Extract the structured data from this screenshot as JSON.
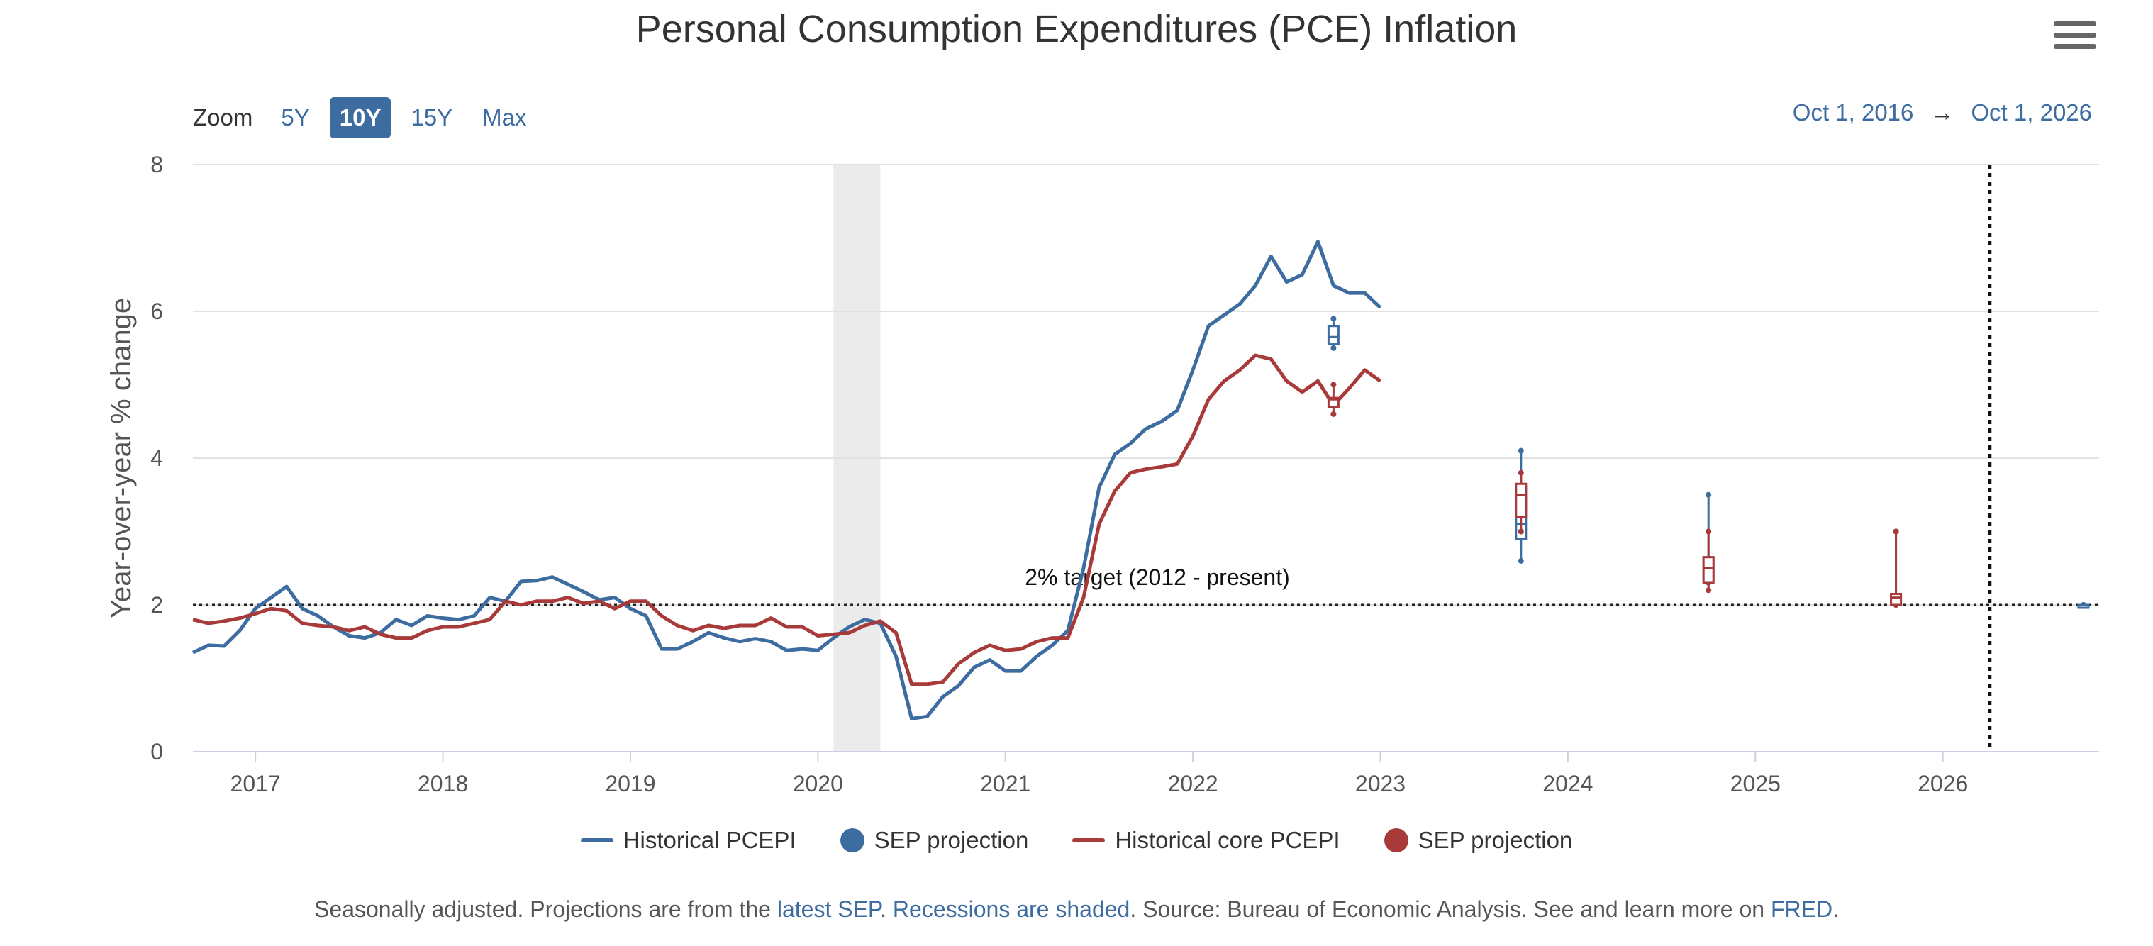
{
  "title": "Personal Consumption Expenditures (PCE) Inflation",
  "menu_icon": "hamburger-menu-icon",
  "zoom": {
    "label": "Zoom",
    "buttons": [
      "5Y",
      "10Y",
      "15Y",
      "Max"
    ],
    "active": "10Y"
  },
  "range": {
    "from": "Oct 1, 2016",
    "arrow": "→",
    "to": "Oct 1, 2026"
  },
  "colors": {
    "headline": "#3d6ca0",
    "core": "#a83a3a",
    "recession": "#ebebeb",
    "grid": "#e2e2e2"
  },
  "legend": [
    {
      "label": "Historical PCEPI",
      "kind": "line",
      "color": "#3d6ca0"
    },
    {
      "label": "SEP projection",
      "kind": "dot",
      "color": "#3d6ca0"
    },
    {
      "label": "Historical core PCEPI",
      "kind": "line",
      "color": "#a83a3a"
    },
    {
      "label": "SEP projection",
      "kind": "dot",
      "color": "#a83a3a"
    }
  ],
  "footer": {
    "t1": "Seasonally adjusted. Projections are from the ",
    "l1": "latest SEP",
    "t2": ". ",
    "l2": "Recessions are shaded",
    "t3": ". Source: Bureau of Economic Analysis. See and learn more on ",
    "l3": "FRED",
    "t4": "."
  },
  "chart_data": {
    "type": "line",
    "ylabel": "Year-over-year % change",
    "ylim": [
      0,
      8
    ],
    "yticks": [
      0,
      2,
      4,
      6,
      8
    ],
    "xlim": [
      "2016-09",
      "2026-11"
    ],
    "xticks": [
      "2017",
      "2018",
      "2019",
      "2020",
      "2021",
      "2022",
      "2023",
      "2024",
      "2025",
      "2026"
    ],
    "grid": true,
    "legend_position": "bottom-center",
    "recessions": [
      {
        "start": "2020-02",
        "end": "2020-04"
      }
    ],
    "target": {
      "value": 2,
      "label": "2% target (2012 - present)"
    },
    "vertical_marker": "2026-04",
    "series": [
      {
        "name": "Historical PCEPI",
        "start": "2016-09",
        "values": [
          1.35,
          1.45,
          1.44,
          1.65,
          1.95,
          2.1,
          2.25,
          1.95,
          1.85,
          1.7,
          1.58,
          1.55,
          1.62,
          1.8,
          1.72,
          1.85,
          1.82,
          1.8,
          1.85,
          2.1,
          2.05,
          2.32,
          2.33,
          2.38,
          2.28,
          2.18,
          2.07,
          2.1,
          1.95,
          1.85,
          1.4,
          1.4,
          1.5,
          1.62,
          1.55,
          1.5,
          1.54,
          1.5,
          1.38,
          1.4,
          1.38,
          1.55,
          1.7,
          1.8,
          1.75,
          1.3,
          0.45,
          0.48,
          0.75,
          0.9,
          1.15,
          1.25,
          1.1,
          1.1,
          1.3,
          1.45,
          1.65,
          2.5,
          3.6,
          4.05,
          4.2,
          4.4,
          4.5,
          4.65,
          5.2,
          5.8,
          5.95,
          6.1,
          6.35,
          6.75,
          6.4,
          6.5,
          6.95,
          6.35,
          6.25,
          6.25,
          6.05
        ]
      },
      {
        "name": "Historical core PCEPI",
        "start": "2016-09",
        "values": [
          1.8,
          1.75,
          1.78,
          1.82,
          1.88,
          1.95,
          1.92,
          1.75,
          1.72,
          1.7,
          1.65,
          1.7,
          1.6,
          1.55,
          1.55,
          1.65,
          1.7,
          1.7,
          1.75,
          1.8,
          2.05,
          2.0,
          2.05,
          2.05,
          2.1,
          2.02,
          2.05,
          1.95,
          2.05,
          2.05,
          1.85,
          1.72,
          1.65,
          1.72,
          1.68,
          1.72,
          1.72,
          1.82,
          1.7,
          1.7,
          1.58,
          1.6,
          1.62,
          1.72,
          1.78,
          1.62,
          0.92,
          0.92,
          0.95,
          1.2,
          1.35,
          1.45,
          1.38,
          1.4,
          1.5,
          1.55,
          1.55,
          2.1,
          3.1,
          3.55,
          3.8,
          3.85,
          3.88,
          3.92,
          4.3,
          4.8,
          5.05,
          5.2,
          5.4,
          5.35,
          5.05,
          4.9,
          5.05,
          4.72,
          4.95,
          5.2,
          5.05
        ]
      }
    ],
    "projections": [
      {
        "name": "SEP projection",
        "series": "Historical PCEPI",
        "points": [
          {
            "x": "2022-10",
            "min": 5.5,
            "q1": 5.55,
            "median": 5.65,
            "q3": 5.8,
            "max": 5.9
          },
          {
            "x": "2023-10",
            "min": 2.6,
            "q1": 2.9,
            "median": 3.1,
            "q3": 3.6,
            "max": 4.1
          },
          {
            "x": "2024-10",
            "min": 2.3,
            "q1": 2.35,
            "median": 2.5,
            "q3": 2.65,
            "max": 3.5
          },
          {
            "x": "2025-10",
            "min": 2.0,
            "q1": 2.0,
            "median": 2.0,
            "q3": 2.1,
            "max": 3.0
          },
          {
            "x": "2026-10",
            "min": 2.0,
            "q1": 2.0,
            "median": 2.0,
            "q3": 2.0,
            "max": 2.0
          }
        ]
      },
      {
        "name": "SEP projection",
        "series": "Historical core PCEPI",
        "points": [
          {
            "x": "2022-10",
            "min": 4.6,
            "q1": 4.7,
            "median": 4.8,
            "q3": 4.82,
            "max": 5.0
          },
          {
            "x": "2023-10",
            "min": 3.0,
            "q1": 3.2,
            "median": 3.5,
            "q3": 3.65,
            "max": 3.8
          },
          {
            "x": "2024-10",
            "min": 2.2,
            "q1": 2.3,
            "median": 2.5,
            "q3": 2.65,
            "max": 3.0
          },
          {
            "x": "2025-10",
            "min": 2.0,
            "q1": 2.0,
            "median": 2.1,
            "q3": 2.15,
            "max": 3.0
          }
        ]
      }
    ]
  }
}
